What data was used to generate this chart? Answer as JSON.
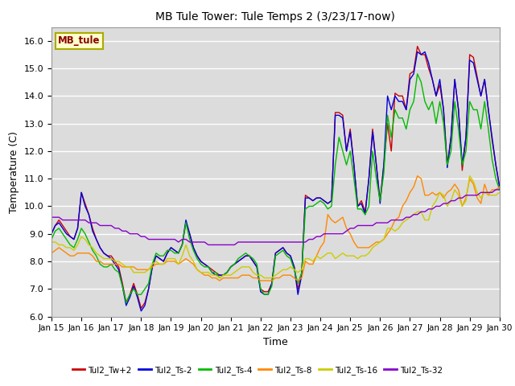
{
  "title": "MB Tule Tower: Tule Temps 2 (3/23/17-now)",
  "xlabel": "Time",
  "ylabel": "Temperature (C)",
  "ylim": [
    6.0,
    16.5
  ],
  "yticks": [
    6.0,
    7.0,
    8.0,
    9.0,
    10.0,
    11.0,
    12.0,
    13.0,
    14.0,
    15.0,
    16.0
  ],
  "bg_color": "#dcdcdc",
  "fig_color": "#ffffff",
  "legend_box_color": "#ffffcc",
  "legend_box_edge": "#aaaa00",
  "legend_label_color": "#880000",
  "series_colors": {
    "Tul2_Tw+2": "#cc0000",
    "Tul2_Ts-2": "#0000dd",
    "Tul2_Ts-4": "#00bb00",
    "Tul2_Ts-8": "#ff8800",
    "Tul2_Ts-16": "#cccc00",
    "Tul2_Ts-32": "#8800cc"
  },
  "x_tick_labels": [
    "Jan 15",
    "Jan 16",
    "Jan 17",
    "Jan 18",
    "Jan 19",
    "Jan 20",
    "Jan 21",
    "Jan 22",
    "Jan 23",
    "Jan 24",
    "Jan 25",
    "Jan 26",
    "Jan 27",
    "Jan 28",
    "Jan 29",
    "Jan 30"
  ],
  "x_ticks": [
    0,
    24,
    48,
    72,
    96,
    120,
    144,
    168,
    192,
    216,
    240,
    264,
    288,
    312,
    336,
    360
  ],
  "data": {
    "t": [
      0,
      3,
      6,
      9,
      12,
      15,
      18,
      21,
      24,
      27,
      30,
      33,
      36,
      39,
      42,
      45,
      48,
      51,
      54,
      57,
      60,
      63,
      66,
      69,
      72,
      75,
      78,
      81,
      84,
      87,
      90,
      93,
      96,
      99,
      102,
      105,
      108,
      111,
      114,
      117,
      120,
      123,
      126,
      129,
      132,
      135,
      138,
      141,
      144,
      147,
      150,
      153,
      156,
      159,
      162,
      165,
      168,
      171,
      174,
      177,
      180,
      183,
      186,
      189,
      192,
      195,
      198,
      201,
      204,
      207,
      210,
      213,
      216,
      219,
      222,
      225,
      228,
      231,
      234,
      237,
      240,
      243,
      246,
      249,
      252,
      255,
      258,
      261,
      264,
      267,
      270,
      273,
      276,
      279,
      282,
      285,
      288,
      291,
      294,
      297,
      300,
      303,
      306,
      309,
      312,
      315,
      318,
      321,
      324,
      327,
      330,
      333,
      336,
      339,
      342,
      345,
      348,
      351,
      354,
      357,
      360
    ],
    "Tul2_Tw+2": [
      9.0,
      9.3,
      9.5,
      9.3,
      9.1,
      8.9,
      8.8,
      9.2,
      10.5,
      10.1,
      9.7,
      9.2,
      8.8,
      8.5,
      8.3,
      8.2,
      8.2,
      8.0,
      7.8,
      7.2,
      6.5,
      6.8,
      7.2,
      6.8,
      6.3,
      6.5,
      7.0,
      7.8,
      8.2,
      8.1,
      8.0,
      8.3,
      8.5,
      8.4,
      8.3,
      8.6,
      9.4,
      9.0,
      8.5,
      8.2,
      8.0,
      7.9,
      7.8,
      7.7,
      7.6,
      7.5,
      7.5,
      7.6,
      7.8,
      7.9,
      8.0,
      8.1,
      8.2,
      8.2,
      8.0,
      7.8,
      7.0,
      6.9,
      6.9,
      7.2,
      8.3,
      8.4,
      8.5,
      8.3,
      8.2,
      7.8,
      7.0,
      7.5,
      10.4,
      10.3,
      10.2,
      10.3,
      10.3,
      10.2,
      10.1,
      10.2,
      13.4,
      13.4,
      13.3,
      12.0,
      12.8,
      11.5,
      10.0,
      10.2,
      9.8,
      11.0,
      12.8,
      11.5,
      10.2,
      11.5,
      13.0,
      12.0,
      14.1,
      14.0,
      14.0,
      13.5,
      14.8,
      14.9,
      15.8,
      15.5,
      15.5,
      15.0,
      14.6,
      14.0,
      14.4,
      13.5,
      11.5,
      12.5,
      14.6,
      13.5,
      11.3,
      12.5,
      15.5,
      15.4,
      14.7,
      14.0,
      14.6,
      13.5,
      12.4,
      11.5,
      10.7
    ],
    "Tul2_Ts-2": [
      9.0,
      9.3,
      9.4,
      9.2,
      9.0,
      8.9,
      8.8,
      9.2,
      10.5,
      10.0,
      9.7,
      9.1,
      8.8,
      8.5,
      8.3,
      8.2,
      8.1,
      7.9,
      7.7,
      7.1,
      6.4,
      6.7,
      7.1,
      6.7,
      6.2,
      6.4,
      7.0,
      7.8,
      8.2,
      8.1,
      8.0,
      8.3,
      8.5,
      8.4,
      8.3,
      8.6,
      9.5,
      9.0,
      8.5,
      8.2,
      8.0,
      7.9,
      7.8,
      7.6,
      7.5,
      7.5,
      7.5,
      7.6,
      7.8,
      7.9,
      8.0,
      8.1,
      8.2,
      8.2,
      8.0,
      7.8,
      6.9,
      6.8,
      6.8,
      7.2,
      8.3,
      8.4,
      8.5,
      8.3,
      8.2,
      7.8,
      6.8,
      7.5,
      10.3,
      10.3,
      10.2,
      10.3,
      10.3,
      10.2,
      10.1,
      10.2,
      13.3,
      13.3,
      13.2,
      12.0,
      12.7,
      11.5,
      10.0,
      10.1,
      9.7,
      11.0,
      12.7,
      11.5,
      10.1,
      11.5,
      14.0,
      13.5,
      14.0,
      13.8,
      13.8,
      13.5,
      14.6,
      14.8,
      15.6,
      15.5,
      15.6,
      15.2,
      14.6,
      14.0,
      14.6,
      13.5,
      11.4,
      12.5,
      14.6,
      13.5,
      11.5,
      12.5,
      15.3,
      15.2,
      14.6,
      14.0,
      14.6,
      13.5,
      12.5,
      11.5,
      10.7
    ],
    "Tul2_Ts-4": [
      8.8,
      9.1,
      9.2,
      9.0,
      8.8,
      8.6,
      8.5,
      8.8,
      9.2,
      9.0,
      8.7,
      8.4,
      8.2,
      7.9,
      7.8,
      7.8,
      7.9,
      7.7,
      7.6,
      7.1,
      6.5,
      6.8,
      7.0,
      6.8,
      6.8,
      7.0,
      7.2,
      7.9,
      8.3,
      8.2,
      8.2,
      8.4,
      8.4,
      8.3,
      8.3,
      8.6,
      9.4,
      8.8,
      8.4,
      8.1,
      7.9,
      7.8,
      7.8,
      7.6,
      7.6,
      7.4,
      7.5,
      7.6,
      7.8,
      7.9,
      8.1,
      8.2,
      8.3,
      8.2,
      8.1,
      7.9,
      7.0,
      6.8,
      6.8,
      7.1,
      8.2,
      8.3,
      8.4,
      8.2,
      8.1,
      7.7,
      7.2,
      7.6,
      9.9,
      10.0,
      10.0,
      10.1,
      10.2,
      10.1,
      9.9,
      10.0,
      11.5,
      12.5,
      12.0,
      11.5,
      12.0,
      11.0,
      9.9,
      9.9,
      9.7,
      10.0,
      12.0,
      11.0,
      10.2,
      11.2,
      13.3,
      12.5,
      13.5,
      13.2,
      13.2,
      12.8,
      13.5,
      13.8,
      14.8,
      14.5,
      13.8,
      13.5,
      13.8,
      13.0,
      13.8,
      13.0,
      11.5,
      12.0,
      13.8,
      12.8,
      11.5,
      12.0,
      13.8,
      13.5,
      13.5,
      12.8,
      13.8,
      12.8,
      11.7,
      11.0,
      10.6
    ],
    "Tul2_Ts-8": [
      8.3,
      8.4,
      8.5,
      8.4,
      8.3,
      8.2,
      8.2,
      8.3,
      8.3,
      8.3,
      8.3,
      8.2,
      8.0,
      8.0,
      7.9,
      7.9,
      7.9,
      7.9,
      7.9,
      7.8,
      7.8,
      7.8,
      7.8,
      7.7,
      7.7,
      7.7,
      7.7,
      7.8,
      7.9,
      7.9,
      7.9,
      8.0,
      8.0,
      8.0,
      7.9,
      8.0,
      8.1,
      8.0,
      7.9,
      7.7,
      7.6,
      7.5,
      7.5,
      7.4,
      7.4,
      7.3,
      7.4,
      7.4,
      7.4,
      7.4,
      7.4,
      7.5,
      7.5,
      7.5,
      7.4,
      7.4,
      7.3,
      7.3,
      7.3,
      7.3,
      7.4,
      7.4,
      7.5,
      7.5,
      7.5,
      7.4,
      7.3,
      7.4,
      8.0,
      7.9,
      7.9,
      8.2,
      8.5,
      8.7,
      9.7,
      9.5,
      9.4,
      9.5,
      9.6,
      9.2,
      9.0,
      8.7,
      8.5,
      8.5,
      8.5,
      8.5,
      8.6,
      8.7,
      8.7,
      8.8,
      9.0,
      9.2,
      9.5,
      9.6,
      10.0,
      10.2,
      10.5,
      10.7,
      11.1,
      11.0,
      10.4,
      10.4,
      10.5,
      10.4,
      10.5,
      10.3,
      10.5,
      10.6,
      10.8,
      10.6,
      10.0,
      10.3,
      11.0,
      10.8,
      10.3,
      10.1,
      10.8,
      10.4,
      10.6,
      10.6,
      10.7
    ],
    "Tul2_Ts-16": [
      8.7,
      8.7,
      8.6,
      8.6,
      8.5,
      8.5,
      8.4,
      8.6,
      8.9,
      8.8,
      8.6,
      8.5,
      8.3,
      8.2,
      8.1,
      8.1,
      8.1,
      8.0,
      8.0,
      7.9,
      7.8,
      7.8,
      7.6,
      7.6,
      7.6,
      7.6,
      7.7,
      7.9,
      8.0,
      7.9,
      7.9,
      8.1,
      8.1,
      8.1,
      7.9,
      8.2,
      8.6,
      8.2,
      8.0,
      7.7,
      7.6,
      7.6,
      7.6,
      7.5,
      7.5,
      7.4,
      7.5,
      7.5,
      7.5,
      7.6,
      7.7,
      7.8,
      7.8,
      7.8,
      7.6,
      7.5,
      7.5,
      7.4,
      7.4,
      7.4,
      7.5,
      7.6,
      7.7,
      7.7,
      7.8,
      7.7,
      7.6,
      7.7,
      8.1,
      8.1,
      8.0,
      8.2,
      8.1,
      8.2,
      8.3,
      8.3,
      8.1,
      8.2,
      8.3,
      8.2,
      8.2,
      8.2,
      8.1,
      8.2,
      8.2,
      8.3,
      8.5,
      8.6,
      8.7,
      8.8,
      9.2,
      9.2,
      9.1,
      9.2,
      9.4,
      9.5,
      9.6,
      9.7,
      9.8,
      9.8,
      9.5,
      9.5,
      10.0,
      10.2,
      10.5,
      10.4,
      10.0,
      10.2,
      10.6,
      10.4,
      10.0,
      10.2,
      11.1,
      10.9,
      10.5,
      10.3,
      10.5,
      10.4,
      10.4,
      10.4,
      10.5
    ],
    "Tul2_Ts-32": [
      9.6,
      9.6,
      9.6,
      9.5,
      9.5,
      9.5,
      9.5,
      9.5,
      9.5,
      9.5,
      9.4,
      9.4,
      9.4,
      9.3,
      9.3,
      9.3,
      9.3,
      9.2,
      9.2,
      9.1,
      9.1,
      9.0,
      9.0,
      9.0,
      8.9,
      8.9,
      8.8,
      8.8,
      8.8,
      8.8,
      8.8,
      8.8,
      8.8,
      8.8,
      8.7,
      8.8,
      8.8,
      8.7,
      8.7,
      8.7,
      8.7,
      8.7,
      8.6,
      8.6,
      8.6,
      8.6,
      8.6,
      8.6,
      8.6,
      8.6,
      8.7,
      8.7,
      8.7,
      8.7,
      8.7,
      8.7,
      8.7,
      8.7,
      8.7,
      8.7,
      8.7,
      8.7,
      8.7,
      8.7,
      8.7,
      8.7,
      8.7,
      8.7,
      8.7,
      8.8,
      8.8,
      8.9,
      8.9,
      9.0,
      9.0,
      9.0,
      9.0,
      9.0,
      9.0,
      9.1,
      9.2,
      9.2,
      9.3,
      9.3,
      9.3,
      9.3,
      9.3,
      9.4,
      9.4,
      9.4,
      9.4,
      9.5,
      9.5,
      9.5,
      9.5,
      9.6,
      9.6,
      9.7,
      9.7,
      9.8,
      9.8,
      9.9,
      9.9,
      10.0,
      10.0,
      10.1,
      10.1,
      10.2,
      10.2,
      10.3,
      10.3,
      10.4,
      10.4,
      10.4,
      10.4,
      10.5,
      10.5,
      10.5,
      10.5,
      10.6,
      10.6
    ]
  }
}
